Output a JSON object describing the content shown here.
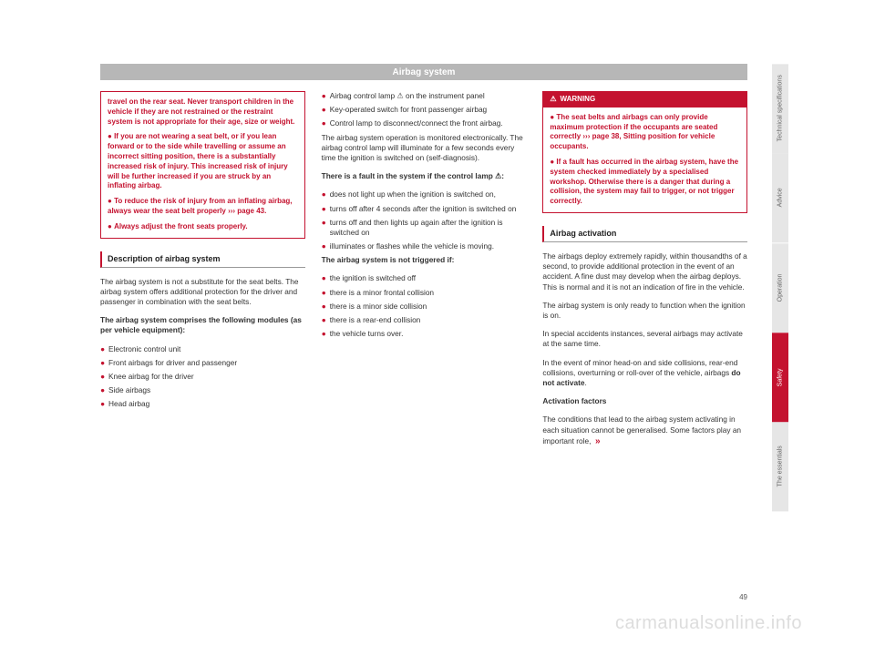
{
  "header": {
    "title": "Airbag system"
  },
  "col1": {
    "warn1": {
      "p1": "travel on the rear seat. Never transport children in the vehicle if they are not restrained or the restraint system is not appropriate for their age, size or weight.",
      "p2": "If you are not wearing a seat belt, or if you lean forward or to the side while travelling or assume an incorrect sitting position, there is a substantially increased risk of injury. This increased risk of injury will be further increased if you are struck by an inflating airbag.",
      "p3_a": "To reduce the risk of injury from an inflating airbag, always wear the seat belt properly",
      "p3_b": "››› page 43.",
      "p4": "Always adjust the front seats properly."
    },
    "section_title": "Description of airbag system",
    "para1": "The airbag system is not a substitute for the seat belts. The airbag system offers additional protection for the driver and passenger in combination with the seat belts.",
    "para2": "The airbag system comprises the following modules (as per vehicle equipment):",
    "b1": "Electronic control unit",
    "b2": "Front airbags for driver and passenger",
    "b3": "Knee airbag for the driver",
    "b4": "Side airbags",
    "b5": "Head airbag"
  },
  "col2": {
    "b1a": "Airbag control lamp ",
    "b1b": " on the instrument panel",
    "b2": "Key-operated switch for front passenger airbag",
    "b3": "Control lamp to disconnect/connect the front airbag.",
    "para1": "The airbag system operation is monitored electronically. The airbag control lamp will illuminate for a few seconds every time the ignition is switched on (self-diagnosis).",
    "para2a": "There is a fault in the system if the control lamp ",
    "para2b": ":",
    "c1": "does not light up when the ignition is switched on,",
    "c2": "turns off after 4 seconds after the ignition is switched on",
    "c3": "turns off and then lights up again after the ignition is switched on",
    "c4": "illuminates or flashes while the vehicle is moving.",
    "para3": "The airbag system is not triggered if:",
    "d1": "the ignition is switched off",
    "d2": "there is a minor frontal collision",
    "d3": "there is a minor side collision",
    "d4": "there is a rear-end collision",
    "d5": "the vehicle turns over."
  },
  "col3": {
    "warn2": {
      "header": "WARNING",
      "p1_a": "The seat belts and airbags can only provide maximum protection if the occupants are seated correctly ",
      "p1_b": "››› page 38, Sitting position for vehicle occupants.",
      "p2": "If a fault has occurred in the airbag system, have the system checked immediately by a specialised workshop. Otherwise there is a danger that during a collision, the system may fail to trigger, or not trigger correctly."
    },
    "section_title": "Airbag activation",
    "para1": "The airbags deploy extremely rapidly, within thousandths of a second, to provide additional protection in the event of an accident. A fine dust may develop when the airbag deploys. This is normal and it is not an indication of fire in the vehicle.",
    "para2": "The airbag system is only ready to function when the ignition is on.",
    "para3": "In special accidents instances, several airbags may activate at the same time.",
    "para4_a": "In the event of minor head-on and side collisions, rear-end collisions, overturning or roll-over of the vehicle, airbags ",
    "para4_b": "do not activate",
    "para4_c": ".",
    "para5": "Activation factors",
    "para6": "The conditions that lead to the airbag system activating in each situation cannot be generalised. Some factors play an important role,"
  },
  "tabs": {
    "t1": "Technical specifications",
    "t2": "Advice",
    "t3": "Operation",
    "t4": "Safety",
    "t5": "The essentials"
  },
  "page_number": "49",
  "watermark": "carmanualsonline.info",
  "icons": {
    "airbag_lamp": "⚠",
    "warn_triangle": "⚠"
  }
}
